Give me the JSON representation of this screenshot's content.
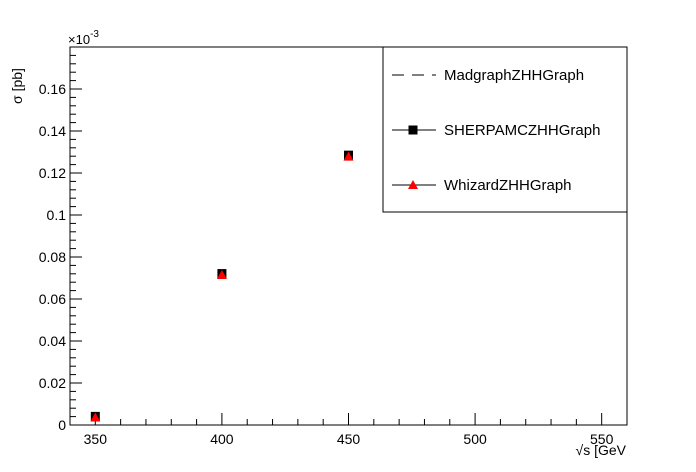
{
  "chart_data": {
    "type": "scatter",
    "title": "",
    "xlabel": "√s [GeV",
    "ylabel": "σ [pb]",
    "y_multiplier_label": "×10",
    "y_multiplier_exponent": "-3",
    "xlim": [
      340,
      560
    ],
    "ylim": [
      0,
      0.18
    ],
    "x_ticks": [
      "350",
      "400",
      "450",
      "500",
      "550"
    ],
    "y_ticks": [
      "0",
      "0.02",
      "0.04",
      "0.06",
      "0.08",
      "0.1",
      "0.12",
      "0.14",
      "0.16"
    ],
    "grid": false,
    "legend_position": "top-right",
    "series": [
      {
        "name": "MadgraphZHHGraph",
        "marker": "dashed-line",
        "color": "#000000",
        "x": [],
        "y": []
      },
      {
        "name": "SHERPAMCZHHGraph",
        "marker": "square",
        "color": "#000000",
        "x": [
          350,
          400,
          450
        ],
        "y": [
          0.0041,
          0.0721,
          0.1285
        ]
      },
      {
        "name": "WhizardZHHGraph",
        "marker": "triangle",
        "color": "#ff0000",
        "x": [
          350,
          400,
          450
        ],
        "y": [
          0.0036,
          0.0714,
          0.1278
        ]
      }
    ]
  }
}
